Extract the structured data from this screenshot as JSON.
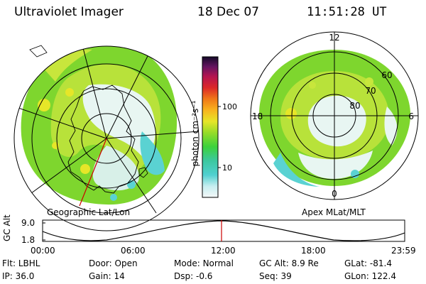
{
  "header": {
    "title": "Ultraviolet Imager",
    "date": "18 Dec 07",
    "time": "11:51:28 UT"
  },
  "geo_panel": {
    "caption": "Geographic Lat/Lon"
  },
  "apex_panel": {
    "caption": "Apex MLat/MLT",
    "mlt_labels": [
      "12",
      "18",
      "6",
      "0"
    ],
    "mlat_labels": [
      "60",
      "70",
      "80"
    ]
  },
  "colorbar": {
    "unit_label": "photon cm⁻²s⁻¹",
    "ticks": [
      "100",
      "10"
    ]
  },
  "altitude_strip": {
    "axis_title": "GC Alt",
    "y_ticks": [
      "9.0",
      "1.8"
    ],
    "time_ticks": [
      "00:00",
      "06:00",
      "12:00",
      "18:00",
      "23:59"
    ]
  },
  "footer": {
    "row1": [
      {
        "label": "Flt:",
        "value": "LBHL"
      },
      {
        "label": "Door:",
        "value": "Open"
      },
      {
        "label": "Mode:",
        "value": "Normal"
      },
      {
        "label": "GC Alt:",
        "value": "8.9 Re"
      },
      {
        "label": "GLat:",
        "value": "-81.4"
      }
    ],
    "row2": [
      {
        "label": "IP:",
        "value": "36.0"
      },
      {
        "label": "Gain:",
        "value": "14"
      },
      {
        "label": "Dsp:",
        "value": "-0.6"
      },
      {
        "label": "Seq:",
        "value": "39"
      },
      {
        "label": "GLon:",
        "value": "122.4"
      }
    ]
  },
  "colors": {
    "marker": "#cc0000",
    "aurora_green": "#7ed62e",
    "aurora_yellow": "#c8e63c",
    "aurora_cyan": "#5ad2d2",
    "aurora_white": "#e8f6f2"
  }
}
